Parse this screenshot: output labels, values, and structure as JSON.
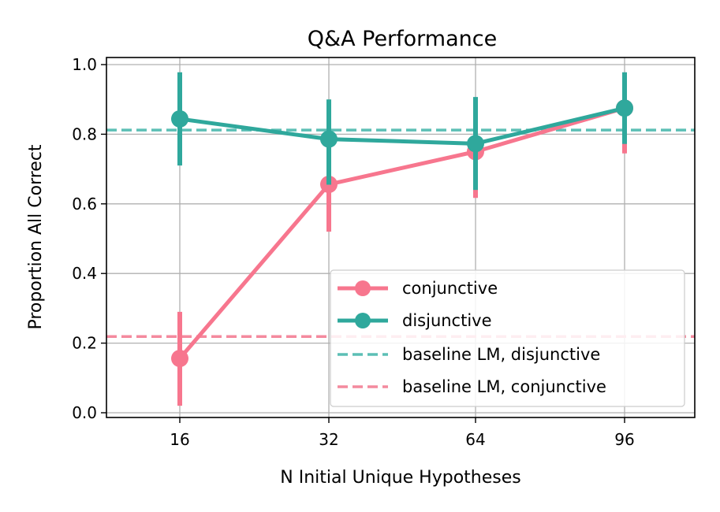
{
  "chart_data": {
    "type": "line",
    "title": "Q&A Performance",
    "xlabel": "N Initial Unique Hypotheses",
    "ylabel": "Proportion All Correct",
    "categories": [
      "16",
      "32",
      "64",
      "96"
    ],
    "ylim": [
      0.0,
      1.0
    ],
    "yticks": [
      "0.0",
      "0.2",
      "0.4",
      "0.6",
      "0.8",
      "1.0"
    ],
    "grid": true,
    "legend_position": "lower-right",
    "series": [
      {
        "name": "conjunctive",
        "color": "#f7768e",
        "values": [
          0.156,
          0.656,
          0.75,
          0.875
        ],
        "ci_low": [
          0.02,
          0.52,
          0.617,
          0.745
        ],
        "ci_high": [
          0.29,
          0.79,
          0.883,
          0.975
        ]
      },
      {
        "name": "disjunctive",
        "color": "#2fa89c",
        "values": [
          0.844,
          0.786,
          0.773,
          0.875
        ],
        "ci_low": [
          0.71,
          0.655,
          0.64,
          0.772
        ],
        "ci_high": [
          0.978,
          0.9,
          0.907,
          0.978
        ]
      }
    ],
    "reference_lines": [
      {
        "name": "baseline LM, disjunctive",
        "value": 0.812,
        "color": "#5cbfb5",
        "style": "dashed"
      },
      {
        "name": "baseline LM, conjunctive",
        "value": 0.219,
        "color": "#f48a9e",
        "style": "dashed"
      }
    ]
  }
}
